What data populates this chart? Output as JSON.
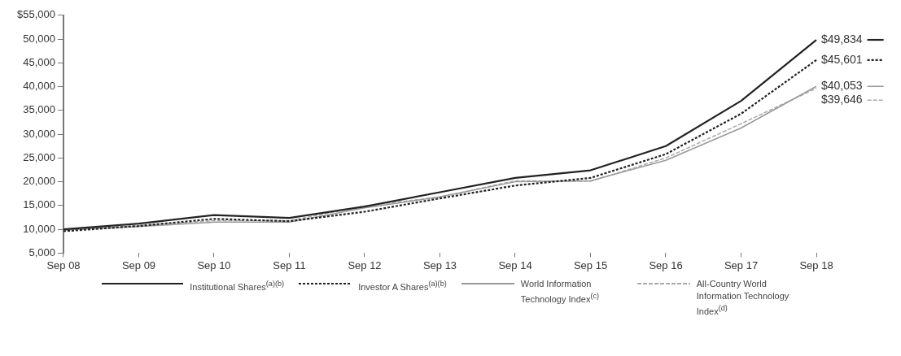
{
  "chart_data": {
    "type": "line",
    "categories": [
      "Sep 08",
      "Sep 09",
      "Sep 10",
      "Sep 11",
      "Sep 12",
      "Sep 13",
      "Sep 14",
      "Sep 15",
      "Sep 16",
      "Sep 17",
      "Sep 18"
    ],
    "series": [
      {
        "name": "Institutional Shares$^{(a)(b)}$",
        "color": "#222222",
        "line_style": "solid",
        "values": [
          10000,
          11200,
          13000,
          12400,
          14800,
          17800,
          20800,
          22400,
          27500,
          37000,
          49834
        ],
        "value_labels": [
          null,
          null,
          null,
          null,
          null,
          null,
          null,
          null,
          null,
          null,
          "$49,834"
        ]
      },
      {
        "name": "Investor A Shares$^{(a)(b)}$",
        "color": "#222222",
        "line_style": "dotted",
        "values": [
          9600,
          10700,
          12200,
          11700,
          13700,
          16500,
          19200,
          20800,
          25800,
          34300,
          45601
        ],
        "value_labels": [
          null,
          null,
          null,
          null,
          null,
          null,
          null,
          null,
          null,
          null,
          "$45,601"
        ]
      },
      {
        "name": "World Information Technology Index$^{(c)}$",
        "color": "#999999",
        "line_style": "solid",
        "values": [
          9900,
          10600,
          11500,
          11500,
          14500,
          16800,
          20000,
          20200,
          24500,
          31300,
          40053
        ],
        "value_labels": [
          null,
          null,
          null,
          null,
          null,
          null,
          null,
          null,
          null,
          null,
          "$40,053"
        ]
      },
      {
        "name": "All-Country World Information Technology Index$^{(d)}$",
        "color": "#aaaaaa",
        "line_style": "dashed",
        "values": [
          9800,
          10800,
          11800,
          11800,
          14900,
          16800,
          20200,
          20100,
          25000,
          32200,
          39646
        ],
        "value_labels": [
          null,
          null,
          null,
          null,
          null,
          null,
          null,
          null,
          null,
          null,
          "$39,646"
        ]
      }
    ],
    "ylim": [
      5000,
      55000
    ],
    "yticks": [
      {
        "value": 5000,
        "label": "5,000"
      },
      {
        "value": 10000,
        "label": "10,000"
      },
      {
        "value": 15000,
        "label": "15,000"
      },
      {
        "value": 20000,
        "label": "20,000"
      },
      {
        "value": 25000,
        "label": "25,000"
      },
      {
        "value": 30000,
        "label": "30,000"
      },
      {
        "value": 35000,
        "label": "35,000"
      },
      {
        "value": 40000,
        "label": "40,000"
      },
      {
        "value": 45000,
        "label": "45,000"
      },
      {
        "value": 50000,
        "label": "50,000"
      },
      {
        "value": 55000,
        "label": "$55,000"
      }
    ],
    "grid": false,
    "legend": "bottom"
  }
}
